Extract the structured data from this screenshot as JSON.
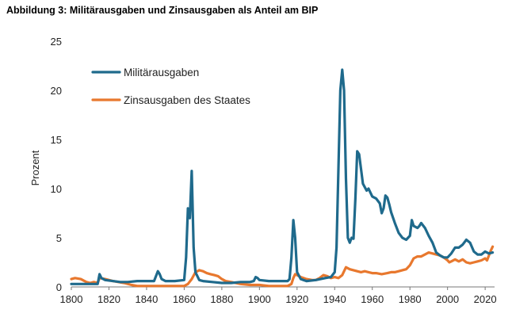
{
  "figure_title": "Abbildung 3: Militärausgaben und Zinsausgaben als Anteil am BIP",
  "chart_data": {
    "type": "line",
    "title": "Abbildung 3: Militärausgaben und Zinsausgaben als Anteil am BIP",
    "xlabel": "",
    "ylabel": "Prozent",
    "xlim": [
      1800,
      2025
    ],
    "ylim": [
      0,
      25
    ],
    "x_ticks": [
      1800,
      1820,
      1840,
      1860,
      1880,
      1900,
      1920,
      1940,
      1960,
      1980,
      2000,
      2020
    ],
    "y_ticks": [
      0,
      5,
      10,
      15,
      20,
      25
    ],
    "grid": false,
    "legend_position": "top-left",
    "series": [
      {
        "name": "Militärausgaben",
        "color": "#1f6a8c",
        "points": [
          [
            1800,
            0.3
          ],
          [
            1805,
            0.3
          ],
          [
            1810,
            0.3
          ],
          [
            1814,
            0.3
          ],
          [
            1815,
            1.3
          ],
          [
            1816,
            0.9
          ],
          [
            1818,
            0.7
          ],
          [
            1822,
            0.6
          ],
          [
            1826,
            0.5
          ],
          [
            1830,
            0.5
          ],
          [
            1835,
            0.6
          ],
          [
            1840,
            0.6
          ],
          [
            1844,
            0.6
          ],
          [
            1846,
            1.6
          ],
          [
            1847,
            1.3
          ],
          [
            1848,
            0.8
          ],
          [
            1850,
            0.6
          ],
          [
            1855,
            0.6
          ],
          [
            1860,
            0.7
          ],
          [
            1861,
            3
          ],
          [
            1862,
            8
          ],
          [
            1863,
            7
          ],
          [
            1864,
            11.8
          ],
          [
            1865,
            4
          ],
          [
            1866,
            1.5
          ],
          [
            1868,
            0.7
          ],
          [
            1870,
            0.6
          ],
          [
            1875,
            0.5
          ],
          [
            1880,
            0.4
          ],
          [
            1885,
            0.4
          ],
          [
            1890,
            0.5
          ],
          [
            1895,
            0.5
          ],
          [
            1897,
            0.6
          ],
          [
            1898,
            1
          ],
          [
            1899,
            0.9
          ],
          [
            1900,
            0.7
          ],
          [
            1905,
            0.6
          ],
          [
            1910,
            0.6
          ],
          [
            1915,
            0.6
          ],
          [
            1916,
            0.8
          ],
          [
            1917,
            3
          ],
          [
            1918,
            6.8
          ],
          [
            1919,
            5
          ],
          [
            1920,
            1.5
          ],
          [
            1922,
            0.8
          ],
          [
            1925,
            0.6
          ],
          [
            1930,
            0.7
          ],
          [
            1935,
            0.9
          ],
          [
            1938,
            1
          ],
          [
            1940,
            1.5
          ],
          [
            1941,
            4
          ],
          [
            1942,
            12
          ],
          [
            1943,
            20
          ],
          [
            1944,
            22.1
          ],
          [
            1945,
            20
          ],
          [
            1946,
            11
          ],
          [
            1947,
            5
          ],
          [
            1948,
            4.5
          ],
          [
            1949,
            5
          ],
          [
            1950,
            4.9
          ],
          [
            1951,
            9
          ],
          [
            1952,
            13.8
          ],
          [
            1953,
            13.5
          ],
          [
            1954,
            12
          ],
          [
            1955,
            10.5
          ],
          [
            1957,
            9.8
          ],
          [
            1958,
            10
          ],
          [
            1960,
            9.2
          ],
          [
            1962,
            9
          ],
          [
            1964,
            8.5
          ],
          [
            1965,
            7.5
          ],
          [
            1966,
            8
          ],
          [
            1967,
            9.3
          ],
          [
            1968,
            9.1
          ],
          [
            1969,
            8.4
          ],
          [
            1970,
            7.6
          ],
          [
            1972,
            6.5
          ],
          [
            1974,
            5.5
          ],
          [
            1976,
            5
          ],
          [
            1978,
            4.8
          ],
          [
            1979,
            5
          ],
          [
            1980,
            5.2
          ],
          [
            1981,
            6.8
          ],
          [
            1982,
            6.2
          ],
          [
            1984,
            6
          ],
          [
            1985,
            6.2
          ],
          [
            1986,
            6.5
          ],
          [
            1988,
            6
          ],
          [
            1990,
            5.2
          ],
          [
            1992,
            4.5
          ],
          [
            1994,
            3.5
          ],
          [
            1996,
            3.2
          ],
          [
            1998,
            3
          ],
          [
            2000,
            3
          ],
          [
            2002,
            3.4
          ],
          [
            2004,
            4
          ],
          [
            2006,
            4
          ],
          [
            2008,
            4.3
          ],
          [
            2010,
            4.8
          ],
          [
            2012,
            4.5
          ],
          [
            2014,
            3.6
          ],
          [
            2016,
            3.3
          ],
          [
            2018,
            3.3
          ],
          [
            2020,
            3.6
          ],
          [
            2022,
            3.4
          ],
          [
            2024,
            3.5
          ]
        ]
      },
      {
        "name": "Zinsausgaben des Staates",
        "color": "#e8782e",
        "points": [
          [
            1800,
            0.8
          ],
          [
            1802,
            0.9
          ],
          [
            1805,
            0.8
          ],
          [
            1808,
            0.5
          ],
          [
            1810,
            0.4
          ],
          [
            1812,
            0.5
          ],
          [
            1814,
            0.4
          ],
          [
            1815,
            0.9
          ],
          [
            1818,
            0.8
          ],
          [
            1822,
            0.6
          ],
          [
            1825,
            0.5
          ],
          [
            1828,
            0.4
          ],
          [
            1832,
            0.2
          ],
          [
            1835,
            0.1
          ],
          [
            1840,
            0.1
          ],
          [
            1845,
            0.1
          ],
          [
            1850,
            0.1
          ],
          [
            1855,
            0.1
          ],
          [
            1860,
            0.1
          ],
          [
            1862,
            0.3
          ],
          [
            1864,
            0.8
          ],
          [
            1866,
            1.5
          ],
          [
            1868,
            1.7
          ],
          [
            1870,
            1.6
          ],
          [
            1872,
            1.4
          ],
          [
            1874,
            1.3
          ],
          [
            1876,
            1.2
          ],
          [
            1878,
            1.1
          ],
          [
            1880,
            0.8
          ],
          [
            1882,
            0.6
          ],
          [
            1885,
            0.5
          ],
          [
            1890,
            0.3
          ],
          [
            1895,
            0.2
          ],
          [
            1900,
            0.2
          ],
          [
            1905,
            0.1
          ],
          [
            1910,
            0.1
          ],
          [
            1915,
            0.1
          ],
          [
            1917,
            0.3
          ],
          [
            1918,
            0.9
          ],
          [
            1919,
            1.3
          ],
          [
            1920,
            1.2
          ],
          [
            1922,
            1
          ],
          [
            1925,
            0.8
          ],
          [
            1928,
            0.7
          ],
          [
            1930,
            0.7
          ],
          [
            1932,
            0.9
          ],
          [
            1934,
            1.2
          ],
          [
            1936,
            1.1
          ],
          [
            1938,
            0.9
          ],
          [
            1940,
            1
          ],
          [
            1942,
            0.9
          ],
          [
            1944,
            1.2
          ],
          [
            1946,
            2
          ],
          [
            1948,
            1.8
          ],
          [
            1950,
            1.7
          ],
          [
            1952,
            1.6
          ],
          [
            1954,
            1.5
          ],
          [
            1956,
            1.6
          ],
          [
            1958,
            1.5
          ],
          [
            1960,
            1.4
          ],
          [
            1962,
            1.4
          ],
          [
            1965,
            1.3
          ],
          [
            1968,
            1.4
          ],
          [
            1970,
            1.5
          ],
          [
            1972,
            1.5
          ],
          [
            1974,
            1.6
          ],
          [
            1976,
            1.7
          ],
          [
            1978,
            1.8
          ],
          [
            1980,
            2.2
          ],
          [
            1982,
            2.9
          ],
          [
            1984,
            3.1
          ],
          [
            1986,
            3.1
          ],
          [
            1988,
            3.3
          ],
          [
            1990,
            3.5
          ],
          [
            1992,
            3.4
          ],
          [
            1994,
            3.3
          ],
          [
            1996,
            3.2
          ],
          [
            1998,
            3
          ],
          [
            2000,
            2.7
          ],
          [
            2001,
            2.5
          ],
          [
            2002,
            2.6
          ],
          [
            2004,
            2.8
          ],
          [
            2006,
            2.6
          ],
          [
            2008,
            2.8
          ],
          [
            2010,
            2.5
          ],
          [
            2012,
            2.4
          ],
          [
            2014,
            2.5
          ],
          [
            2016,
            2.6
          ],
          [
            2018,
            2.7
          ],
          [
            2020,
            2.9
          ],
          [
            2021,
            2.7
          ],
          [
            2022,
            3.2
          ],
          [
            2023,
            3.7
          ],
          [
            2024,
            4.1
          ]
        ]
      }
    ]
  }
}
